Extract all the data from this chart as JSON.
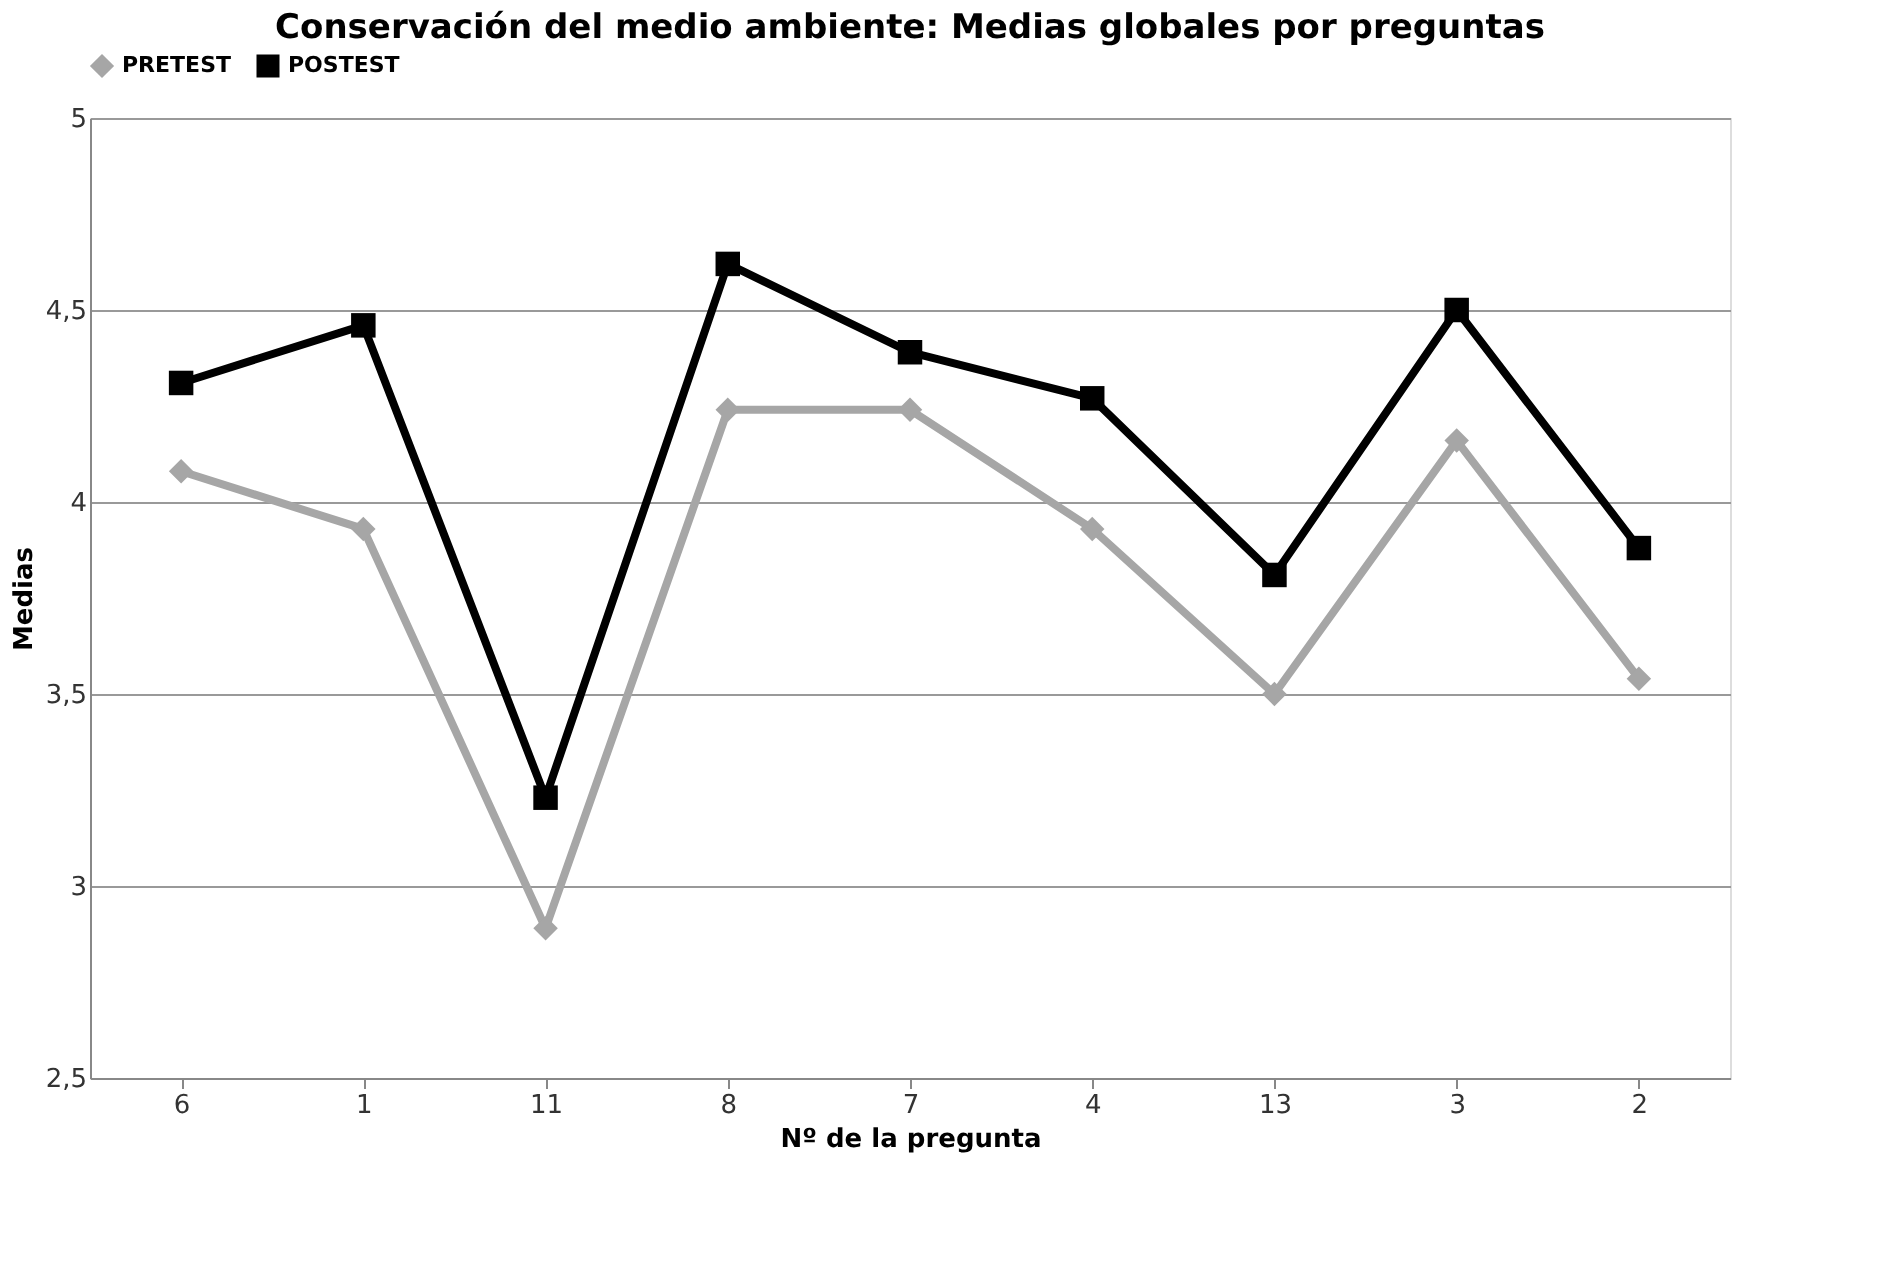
{
  "chart_data": {
    "type": "line",
    "title": "Conservación del medio ambiente: Medias globales por preguntas",
    "xlabel": "Nº de la pregunta",
    "ylabel": "Medias",
    "categories": [
      "6",
      "1",
      "11",
      "8",
      "7",
      "4",
      "13",
      "3",
      "2"
    ],
    "series": [
      {
        "name": "PRETEST",
        "color": "#a6a6a6",
        "marker": "diamond",
        "values": [
          4.08,
          3.93,
          2.89,
          4.24,
          4.24,
          3.93,
          3.5,
          4.16,
          3.54
        ]
      },
      {
        "name": "POSTEST",
        "color": "#000000",
        "marker": "square",
        "values": [
          4.31,
          4.46,
          3.23,
          4.62,
          4.39,
          4.27,
          3.81,
          4.5,
          3.88
        ]
      }
    ],
    "ylim": [
      2.5,
      5
    ],
    "yticks": [
      {
        "value": 2.5,
        "label": "2,5"
      },
      3,
      {
        "value": 3.5,
        "label": "3,5"
      },
      4,
      {
        "value": 4.5,
        "label": "4,5"
      },
      5
    ],
    "grid": "y",
    "legend": "top",
    "line_style": "solid"
  }
}
